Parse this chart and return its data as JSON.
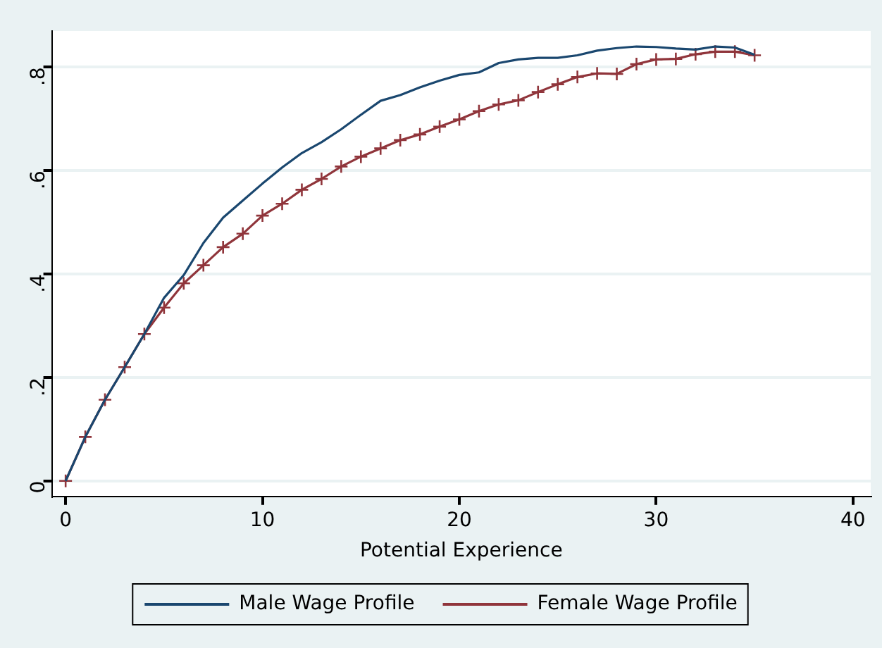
{
  "chart_data": {
    "type": "line",
    "xlabel": "Potential Experience",
    "x": [
      0,
      1,
      2,
      3,
      4,
      5,
      6,
      7,
      8,
      9,
      10,
      11,
      12,
      13,
      14,
      15,
      16,
      17,
      18,
      19,
      20,
      21,
      22,
      23,
      24,
      25,
      26,
      27,
      28,
      29,
      30,
      31,
      32,
      33,
      34,
      35
    ],
    "series": [
      {
        "name": "Male Wage Profile",
        "color": "#1a476f",
        "marker": "none",
        "values": [
          0,
          0.085,
          0.157,
          0.22,
          0.284,
          0.354,
          0.398,
          0.46,
          0.509,
          0.542,
          0.575,
          0.606,
          0.634,
          0.655,
          0.68,
          0.708,
          0.735,
          0.746,
          0.761,
          0.774,
          0.785,
          0.79,
          0.808,
          0.815,
          0.818,
          0.818,
          0.823,
          0.832,
          0.837,
          0.84,
          0.839,
          0.836,
          0.834,
          0.84,
          0.838,
          0.824
        ]
      },
      {
        "name": "Female Wage Profile",
        "color": "#90353b",
        "marker": "cross",
        "values": [
          0,
          0.085,
          0.157,
          0.22,
          0.284,
          0.335,
          0.382,
          0.417,
          0.452,
          0.478,
          0.513,
          0.536,
          0.563,
          0.584,
          0.608,
          0.627,
          0.643,
          0.659,
          0.67,
          0.685,
          0.699,
          0.715,
          0.728,
          0.736,
          0.752,
          0.767,
          0.781,
          0.788,
          0.787,
          0.806,
          0.815,
          0.816,
          0.825,
          0.83,
          0.83,
          0.823
        ]
      }
    ],
    "xlim": [
      -0.7,
      40.9
    ],
    "xticks": [
      0,
      10,
      20,
      30,
      40
    ],
    "ylim": [
      -0.03,
      0.87
    ],
    "yticks": [
      0,
      {
        "value": 0.2,
        "label": ".2"
      },
      {
        "value": 0.4,
        "label": ".4"
      },
      {
        "value": 0.6,
        "label": ".6"
      },
      {
        "value": 0.8,
        "label": ".8"
      }
    ],
    "grid": "y",
    "legend": "bottom",
    "line_style": "solid"
  }
}
